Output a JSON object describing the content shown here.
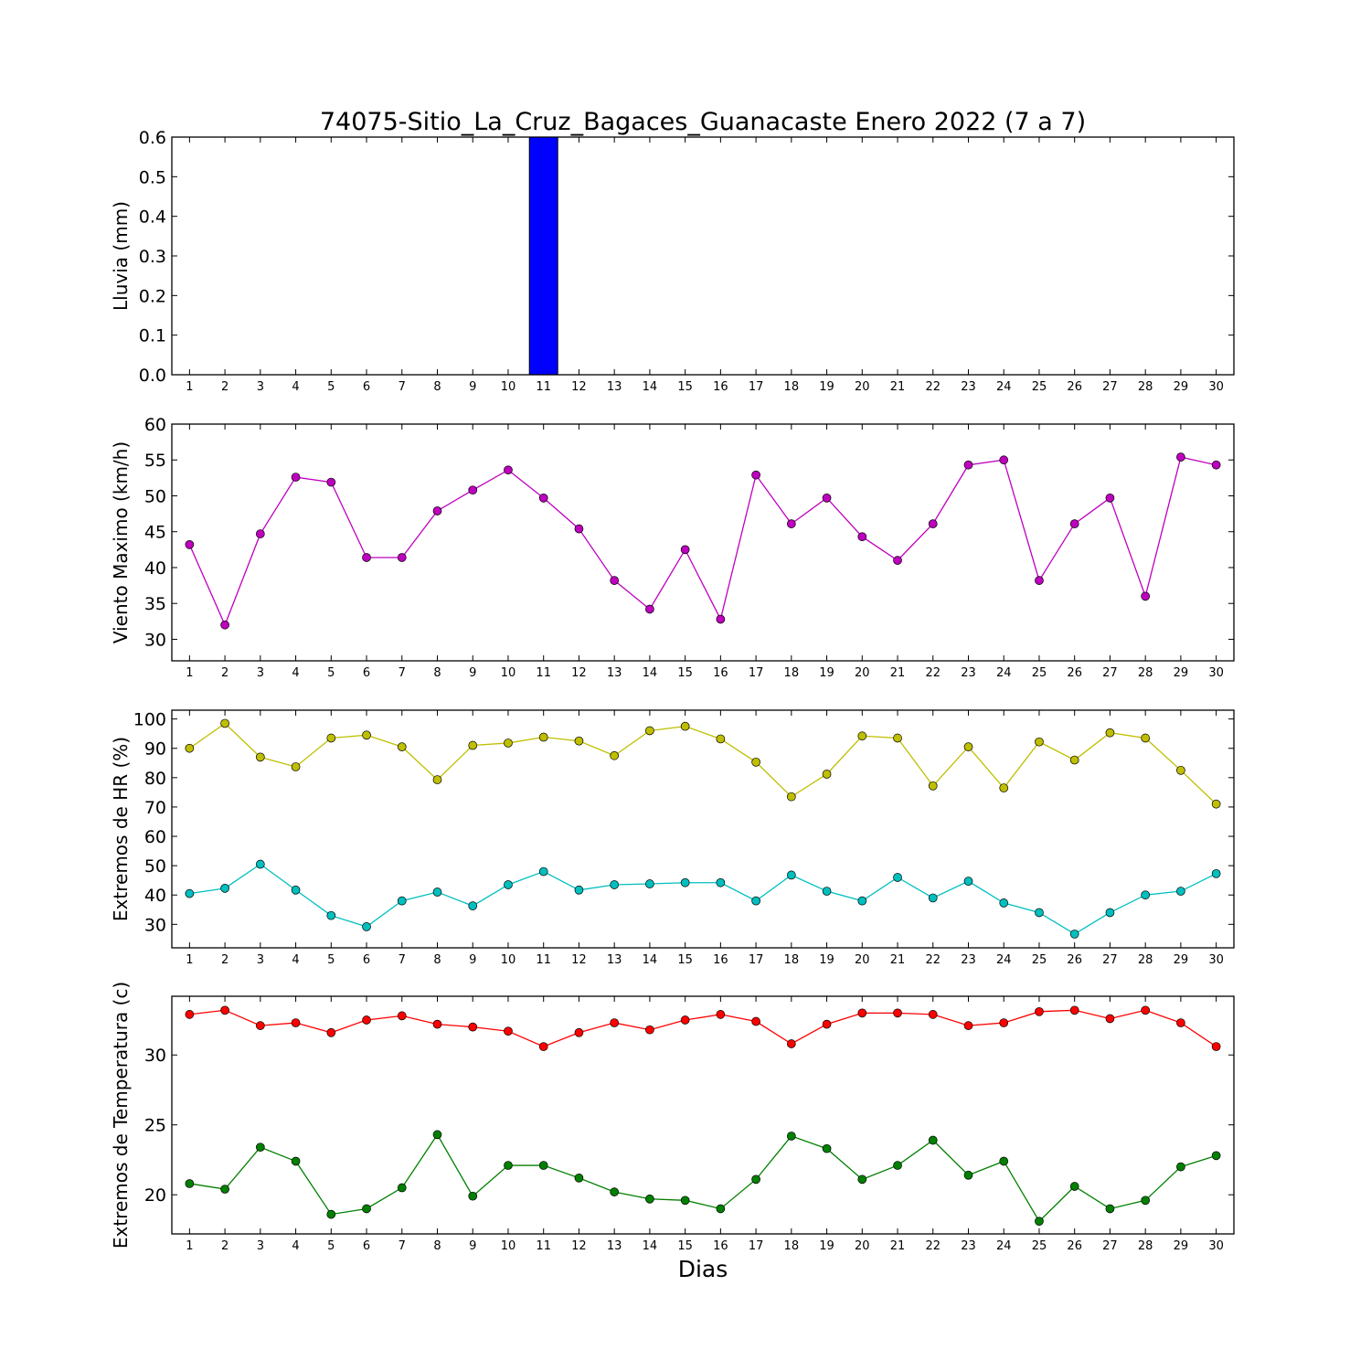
{
  "chart_data": {
    "title": "74075-Sitio_La_Cruz_Bagaces_Guanacaste Enero 2022  (7 a 7)",
    "xlabel": "Dias",
    "x": [
      1,
      2,
      3,
      4,
      5,
      6,
      7,
      8,
      9,
      10,
      11,
      12,
      13,
      14,
      15,
      16,
      17,
      18,
      19,
      20,
      21,
      22,
      23,
      24,
      25,
      26,
      27,
      28,
      29,
      30
    ],
    "panels": [
      {
        "type": "bar",
        "ylabel": "Lluvia (mm)",
        "ylim": [
          0,
          0.6
        ],
        "yticks": [
          "0.0",
          "0.1",
          "0.2",
          "0.3",
          "0.4",
          "0.5",
          "0.6"
        ],
        "ytick_values": [
          0,
          0.1,
          0.2,
          0.3,
          0.4,
          0.5,
          0.6
        ],
        "series": [
          {
            "color": "#0000ff",
            "values": [
              0,
              0,
              0,
              0,
              0,
              0,
              0,
              0,
              0,
              0,
              0.6,
              0,
              0,
              0,
              0,
              0,
              0,
              0,
              0,
              0,
              0,
              0,
              0,
              0,
              0,
              0,
              0,
              0,
              0,
              0
            ]
          }
        ]
      },
      {
        "type": "line",
        "ylabel": "Viento Maximo (km/h)",
        "ylim": [
          27,
          60
        ],
        "yticks": [
          "30",
          "35",
          "40",
          "45",
          "50",
          "55",
          "60"
        ],
        "ytick_values": [
          30,
          35,
          40,
          45,
          50,
          55,
          60
        ],
        "series": [
          {
            "color": "#bf00bf",
            "values": [
              43.2,
              32,
              44.7,
              52.6,
              51.9,
              41.4,
              41.4,
              47.9,
              50.8,
              53.6,
              49.7,
              45.4,
              38.2,
              34.2,
              42.5,
              32.8,
              52.9,
              46.1,
              49.7,
              44.3,
              41,
              46.1,
              54.3,
              55,
              38.2,
              46.1,
              49.7,
              36,
              55.4,
              54.3
            ]
          }
        ]
      },
      {
        "type": "line",
        "ylabel": "Extremos de HR (%)",
        "ylim": [
          22,
          103
        ],
        "yticks": [
          "30",
          "40",
          "50",
          "60",
          "70",
          "80",
          "90",
          "100"
        ],
        "ytick_values": [
          30,
          40,
          50,
          60,
          70,
          80,
          90,
          100
        ],
        "series": [
          {
            "color": "#bfbf00",
            "values": [
              90,
              98.5,
              87,
              83.7,
              93.5,
              94.5,
              90.5,
              79.3,
              91,
              91.8,
              93.8,
              92.5,
              87.5,
              96,
              97.5,
              93.2,
              85.3,
              73.5,
              81.2,
              94.2,
              93.5,
              77.2,
              90.5,
              76.5,
              92.2,
              86,
              95.3,
              93.5,
              82.5,
              71
            ]
          },
          {
            "color": "#00bfbf",
            "values": [
              40.5,
              42.3,
              50.5,
              41.7,
              33,
              29.2,
              38,
              41,
              36.3,
              43.5,
              48,
              41.7,
              43.5,
              43.8,
              44.2,
              44.2,
              38,
              46.8,
              41.3,
              38,
              46,
              39,
              44.7,
              37.3,
              34,
              26.7,
              34,
              40,
              41.3,
              47.3
            ]
          }
        ]
      },
      {
        "type": "line",
        "ylabel": "Extremos de Temperatura (c)",
        "ylim": [
          17.2,
          34.2
        ],
        "yticks": [
          "20",
          "25",
          "30"
        ],
        "ytick_values": [
          20,
          25,
          30
        ],
        "series": [
          {
            "color": "#ff0000",
            "values": [
              32.9,
              33.2,
              32.1,
              32.3,
              31.6,
              32.5,
              32.8,
              32.2,
              32,
              31.7,
              30.6,
              31.6,
              32.3,
              31.8,
              32.5,
              32.9,
              32.4,
              30.8,
              32.2,
              33,
              33,
              32.9,
              32.1,
              32.3,
              33.1,
              33.2,
              32.6,
              33.2,
              32.3,
              30.6
            ]
          },
          {
            "color": "#008000",
            "values": [
              20.8,
              20.4,
              23.4,
              22.4,
              18.6,
              19,
              20.5,
              24.3,
              19.9,
              22.1,
              22.1,
              21.2,
              20.2,
              19.7,
              19.6,
              19,
              21.1,
              24.2,
              23.3,
              21.1,
              22.1,
              23.9,
              21.4,
              22.4,
              18.1,
              20.6,
              19,
              19.6,
              22,
              22.8
            ]
          }
        ]
      }
    ]
  }
}
